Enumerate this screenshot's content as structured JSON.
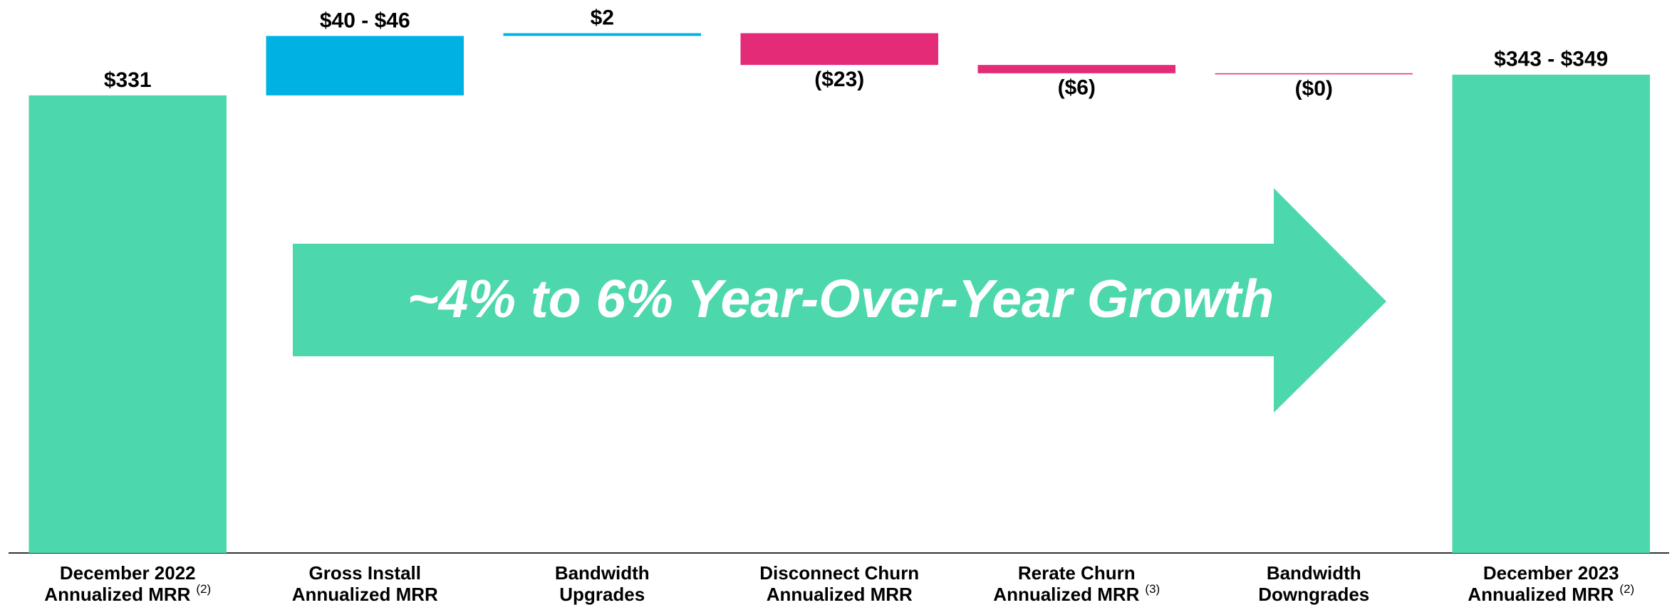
{
  "chart_data": {
    "type": "waterfall",
    "categories": [
      [
        "December 2022",
        "Annualized MRR"
      ],
      [
        "Gross Install",
        "Annualized MRR"
      ],
      [
        "Bandwidth",
        "Upgrades"
      ],
      [
        "Disconnect Churn",
        "Annualized MRR"
      ],
      [
        "Rerate Churn",
        "Annualized MRR"
      ],
      [
        "Bandwidth",
        "Downgrades"
      ],
      [
        "December 2023",
        "Annualized MRR"
      ]
    ],
    "category_notes": [
      "(2)",
      null,
      null,
      null,
      "(3)",
      null,
      "(2)"
    ],
    "kinds": [
      "total",
      "increase",
      "increase",
      "decrease",
      "decrease",
      "decrease",
      "total"
    ],
    "values": [
      331,
      43,
      2,
      -23,
      -6,
      0,
      346
    ],
    "value_labels": [
      "$331",
      "$40 - $46",
      "$2",
      "($23)",
      "($6)",
      "($0)",
      "$343 - $349"
    ],
    "colors": {
      "total": "#4cd7ad",
      "increase": "#00b2e3",
      "decrease": "#e32b78"
    },
    "ylim": [
      0,
      400
    ],
    "annotation": "~4% to 6% Year-Over-Year Growth",
    "annotation_color": "#4cd7ad"
  }
}
